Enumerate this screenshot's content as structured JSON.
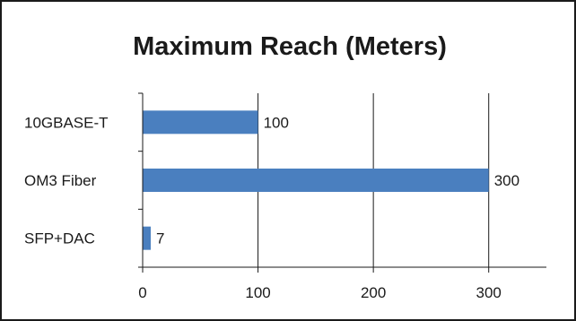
{
  "chart_data": {
    "type": "bar",
    "orientation": "horizontal",
    "title": "Maximum Reach (Meters)",
    "categories": [
      "10GBASE-T",
      "OM3 Fiber",
      "SFP+DAC"
    ],
    "values": [
      100,
      300,
      7
    ],
    "data_labels": [
      "100",
      "300",
      "7"
    ],
    "xlim": [
      0,
      350
    ],
    "xticks": [
      0,
      100,
      200,
      300
    ],
    "xtick_labels": [
      "0",
      "100",
      "200",
      "300"
    ],
    "xlabel": "",
    "ylabel": "",
    "grid": true,
    "legend": "none",
    "bar_color": "#4a7fbf"
  }
}
